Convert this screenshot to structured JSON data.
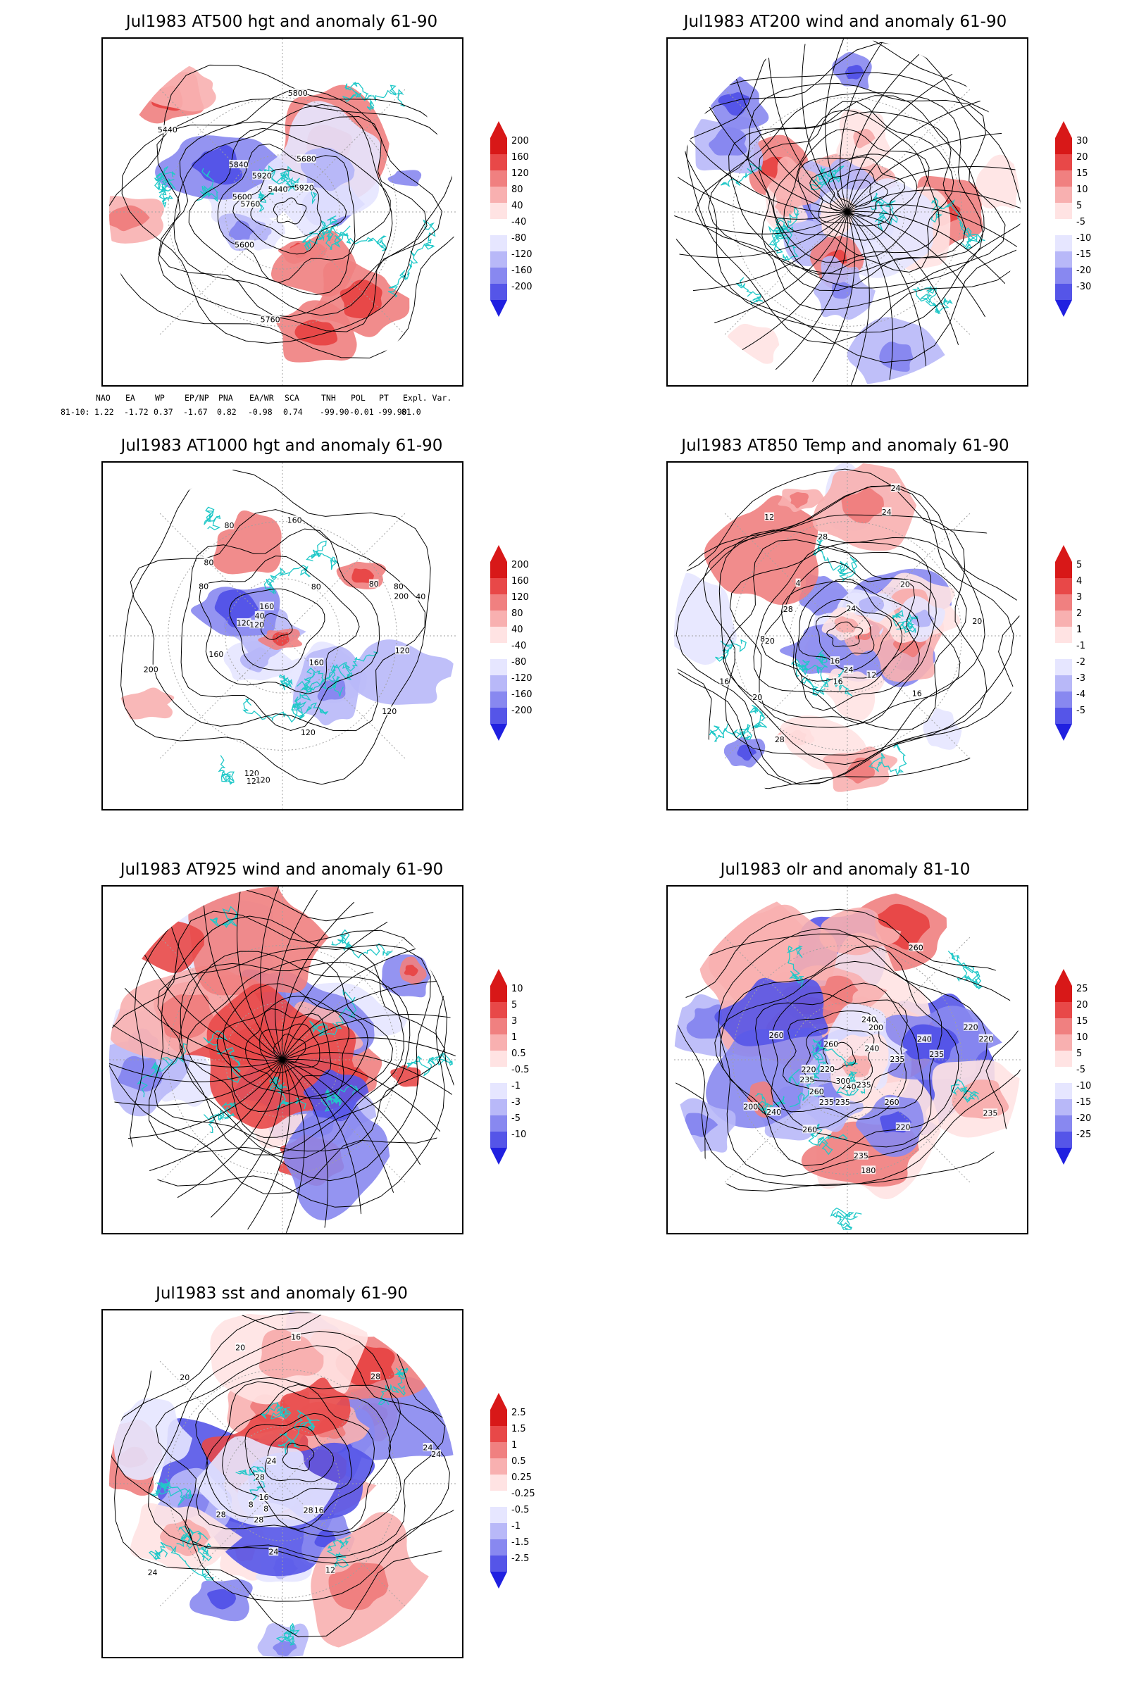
{
  "colors": {
    "coast": "#20c8c8",
    "contour": "#000000",
    "grid": "#a0a0a0",
    "pos": [
      "#ffe3e3",
      "#f8b0b0",
      "#f08080",
      "#e84848",
      "#d81818"
    ],
    "neg": [
      "#e6e6ff",
      "#b8b8f8",
      "#8888f0",
      "#5555e8",
      "#2020e0"
    ]
  },
  "panels": [
    {
      "id": "at500",
      "title": "Jul1983 AT500 hgt and anomaly 61-90",
      "colorbar": [
        "200",
        "160",
        "120",
        "80",
        "40",
        "-40",
        "-80",
        "-120",
        "-160",
        "-200"
      ],
      "contour_labels": [
        "5800",
        "5600",
        "5920",
        "5440",
        "5440",
        "5600",
        "5680",
        "5760",
        "5840",
        "5760",
        "5920"
      ],
      "index_table": {
        "headers": [
          "NAO",
          "EA",
          "WP",
          "EP/NP",
          "PNA",
          "EA/WR",
          "SCA",
          "TNH",
          "POL",
          "PT",
          "Expl. Var."
        ],
        "row_label": "81-10:",
        "values": [
          "1.22",
          "-1.72",
          "0.37",
          "-1.67",
          "0.82",
          "-0.98",
          "0.74",
          "-99.90",
          "-0.01",
          "-99.90",
          "81.0"
        ]
      }
    },
    {
      "id": "at200",
      "title": "Jul1983 AT200 wind and anomaly 61-90",
      "colorbar": [
        "30",
        "20",
        "15",
        "10",
        "5",
        "-5",
        "-10",
        "-15",
        "-20",
        "-30"
      ],
      "contour_labels": []
    },
    {
      "id": "at1000",
      "title": "Jul1983 AT1000 hgt and anomaly 61-90",
      "colorbar": [
        "200",
        "160",
        "120",
        "80",
        "40",
        "-40",
        "-80",
        "-120",
        "-160",
        "-200"
      ],
      "contour_labels": [
        "80",
        "120",
        "160",
        "120",
        "200",
        "160",
        "80",
        "80",
        "120",
        "160",
        "120",
        "40",
        "120",
        "80",
        "40",
        "200",
        "160",
        "120",
        "80",
        "120",
        "80",
        "120"
      ]
    },
    {
      "id": "at850",
      "title": "Jul1983 AT850 Temp and anomaly 61-90",
      "colorbar": [
        "5",
        "4",
        "3",
        "2",
        "1",
        "-1",
        "-2",
        "-3",
        "-4",
        "-5"
      ],
      "contour_labels": [
        "16",
        "16",
        "12",
        "20",
        "24",
        "4",
        "8",
        "20",
        "24",
        "28",
        "24",
        "12",
        "20",
        "28",
        "28",
        "24",
        "20",
        "16",
        "16"
      ]
    },
    {
      "id": "at925",
      "title": "Jul1983 AT925 wind and anomaly 61-90",
      "colorbar": [
        "10",
        "5",
        "3",
        "1",
        "0.5",
        "-0.5",
        "-1",
        "-3",
        "-5",
        "-10"
      ],
      "contour_labels": []
    },
    {
      "id": "olr",
      "title": "Jul1983 olr and anomaly 81-10",
      "colorbar": [
        "25",
        "20",
        "15",
        "10",
        "5",
        "-5",
        "-10",
        "-15",
        "-20",
        "-25"
      ],
      "contour_labels": [
        "260",
        "220",
        "235",
        "220",
        "240",
        "260",
        "235",
        "260",
        "220",
        "235",
        "240",
        "200",
        "180",
        "220",
        "240",
        "235",
        "235",
        "200",
        "300",
        "240",
        "260",
        "235",
        "220",
        "240",
        "260",
        "235",
        "235",
        "260"
      ]
    },
    {
      "id": "sst",
      "title": "Jul1983 sst and anomaly 61-90",
      "colorbar": [
        "2.5",
        "1.5",
        "1",
        "0.5",
        "0.25",
        "-0.25",
        "-0.5",
        "-1",
        "-1.5",
        "-2.5"
      ],
      "contour_labels": [
        "28",
        "28",
        "24",
        "24",
        "20",
        "16",
        "8",
        "16",
        "12",
        "8",
        "16",
        "20",
        "24",
        "28",
        "28",
        "24",
        "24",
        "28"
      ]
    }
  ]
}
